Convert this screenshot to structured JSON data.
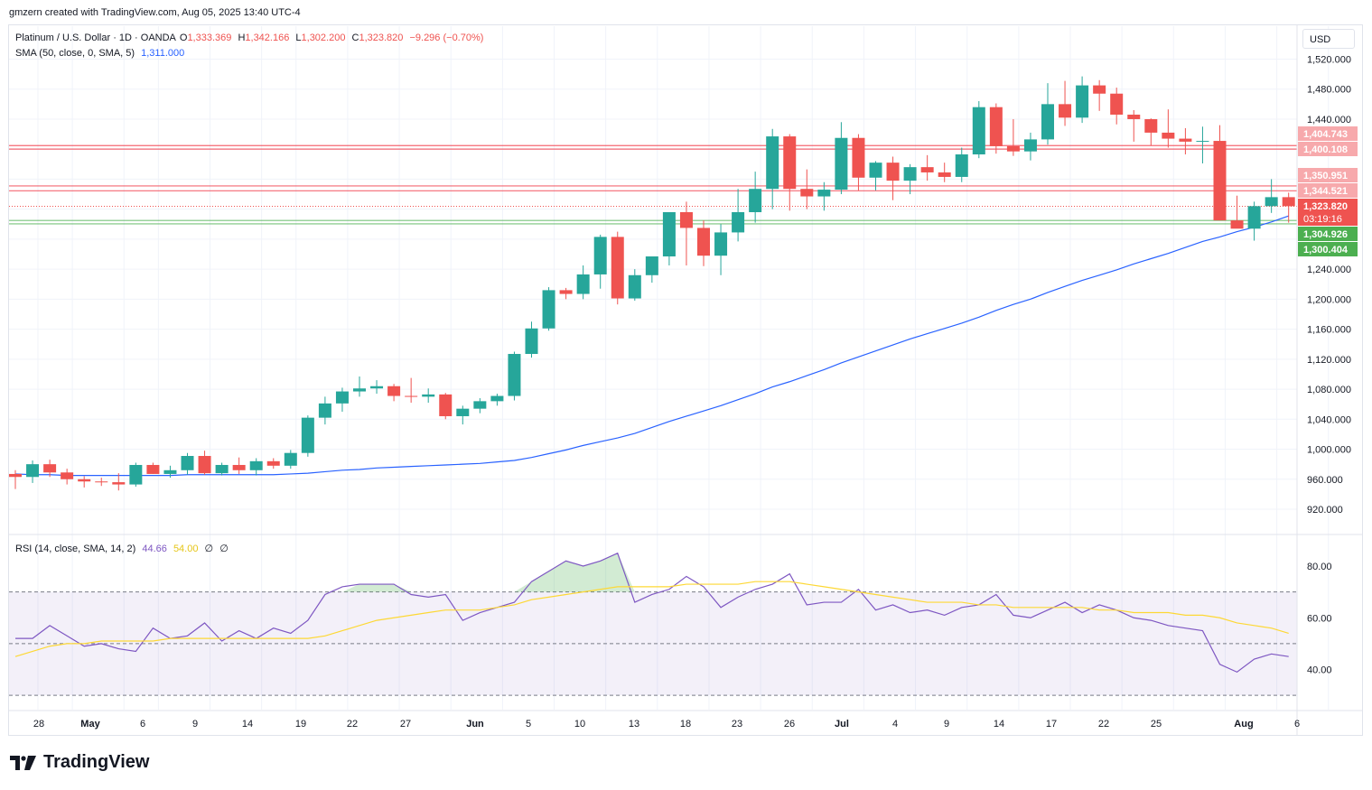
{
  "header": {
    "attribution": "gmzern created with TradingView.com, Aug 05, 2025 13:40 UTC-4"
  },
  "legend": {
    "symbol": "Platinum / U.S. Dollar · 1D · OANDA",
    "o_label": "O",
    "o_value": "1,333.369",
    "h_label": "H",
    "h_value": "1,342.166",
    "l_label": "L",
    "l_value": "1,302.200",
    "c_label": "C",
    "c_value": "1,323.820",
    "change": "−9.296 (−0.70%)",
    "sma_label": "SMA (50, close, 0, SMA, 5)",
    "sma_value": "1,311.000",
    "rsi_label": "RSI (14, close, SMA, 14, 2)",
    "rsi_value": "44.66",
    "rsi_ma_value": "54.00",
    "rsi_extra1": "∅",
    "rsi_extra2": "∅"
  },
  "currency": "USD",
  "footer": {
    "brand": "TradingView"
  },
  "colors": {
    "up": "#26a69a",
    "down": "#ef5350",
    "sma": "#2962ff",
    "rsi": "#7e57c2",
    "rsi_ma": "#fdd835",
    "res": "#f23645",
    "sup": "#4caf50"
  },
  "chart_data": [
    {
      "type": "candlestick",
      "title": "Platinum / U.S. Dollar · 1D · OANDA",
      "ylim": [
        880,
        1530
      ],
      "yticks": [
        "920.000",
        "960.000",
        "1,000.000",
        "1,040.000",
        "1,080.000",
        "1,120.000",
        "1,160.000",
        "1,200.000",
        "1,240.000",
        "1,440.000",
        "1,480.000",
        "1,520.000"
      ],
      "xticks": [
        "28",
        "May",
        "6",
        "9",
        "14",
        "19",
        "22",
        "27",
        "Jun",
        "5",
        "10",
        "13",
        "18",
        "23",
        "26",
        "Jul",
        "4",
        "9",
        "14",
        "17",
        "22",
        "25",
        "Aug",
        "6"
      ],
      "candles": [
        [
          967,
          972,
          947,
          963
        ],
        [
          963,
          985,
          955,
          980
        ],
        [
          980,
          986,
          963,
          969
        ],
        [
          969,
          974,
          953,
          960
        ],
        [
          960,
          964,
          949,
          957
        ],
        [
          957,
          962,
          951,
          956
        ],
        [
          956,
          968,
          945,
          953
        ],
        [
          953,
          982,
          950,
          979
        ],
        [
          979,
          982,
          967,
          967
        ],
        [
          967,
          978,
          962,
          972
        ],
        [
          972,
          995,
          966,
          991
        ],
        [
          991,
          998,
          966,
          968
        ],
        [
          968,
          982,
          965,
          979
        ],
        [
          979,
          989,
          967,
          972
        ],
        [
          972,
          988,
          965,
          984
        ],
        [
          984,
          988,
          974,
          978
        ],
        [
          978,
          999,
          974,
          995
        ],
        [
          995,
          1045,
          990,
          1042
        ],
        [
          1042,
          1070,
          1033,
          1061
        ],
        [
          1061,
          1082,
          1050,
          1077
        ],
        [
          1077,
          1097,
          1070,
          1081
        ],
        [
          1081,
          1092,
          1074,
          1084
        ],
        [
          1084,
          1087,
          1064,
          1071
        ],
        [
          1071,
          1095,
          1062,
          1070
        ],
        [
          1070,
          1081,
          1062,
          1073
        ],
        [
          1073,
          1075,
          1040,
          1044
        ],
        [
          1044,
          1058,
          1033,
          1054
        ],
        [
          1054,
          1068,
          1048,
          1064
        ],
        [
          1064,
          1074,
          1058,
          1071
        ],
        [
          1071,
          1130,
          1065,
          1127
        ],
        [
          1127,
          1170,
          1122,
          1161
        ],
        [
          1161,
          1216,
          1158,
          1212
        ],
        [
          1212,
          1215,
          1200,
          1207
        ],
        [
          1207,
          1245,
          1200,
          1233
        ],
        [
          1233,
          1286,
          1214,
          1283
        ],
        [
          1283,
          1290,
          1193,
          1201
        ],
        [
          1201,
          1240,
          1198,
          1232
        ],
        [
          1232,
          1255,
          1222,
          1257
        ],
        [
          1257,
          1315,
          1245,
          1316
        ],
        [
          1316,
          1330,
          1245,
          1295
        ],
        [
          1295,
          1305,
          1244,
          1258
        ],
        [
          1258,
          1300,
          1232,
          1289
        ],
        [
          1289,
          1347,
          1277,
          1316
        ],
        [
          1316,
          1370,
          1302,
          1347
        ],
        [
          1347,
          1427,
          1320,
          1417
        ],
        [
          1417,
          1420,
          1318,
          1347
        ],
        [
          1347,
          1373,
          1320,
          1337
        ],
        [
          1337,
          1356,
          1318,
          1346
        ],
        [
          1346,
          1436,
          1340,
          1415
        ],
        [
          1415,
          1420,
          1345,
          1362
        ],
        [
          1362,
          1384,
          1345,
          1382
        ],
        [
          1382,
          1390,
          1332,
          1358
        ],
        [
          1358,
          1380,
          1340,
          1376
        ],
        [
          1376,
          1392,
          1358,
          1369
        ],
        [
          1369,
          1382,
          1356,
          1363
        ],
        [
          1363,
          1402,
          1356,
          1393
        ],
        [
          1393,
          1464,
          1388,
          1456
        ],
        [
          1456,
          1461,
          1394,
          1404
        ],
        [
          1404,
          1440,
          1391,
          1397
        ],
        [
          1397,
          1422,
          1385,
          1413
        ],
        [
          1413,
          1488,
          1406,
          1460
        ],
        [
          1460,
          1491,
          1431,
          1442
        ],
        [
          1442,
          1497,
          1435,
          1485
        ],
        [
          1485,
          1492,
          1451,
          1474
        ],
        [
          1474,
          1482,
          1433,
          1446
        ],
        [
          1446,
          1452,
          1410,
          1440
        ],
        [
          1440,
          1441,
          1405,
          1422
        ],
        [
          1422,
          1453,
          1402,
          1414
        ],
        [
          1414,
          1428,
          1393,
          1410
        ],
        [
          1410,
          1430,
          1381,
          1411
        ],
        [
          1411,
          1432,
          1305,
          1305
        ],
        [
          1305,
          1338,
          1300,
          1294
        ],
        [
          1294,
          1330,
          1278,
          1324
        ],
        [
          1324,
          1360,
          1315,
          1336
        ],
        [
          1336,
          1342,
          1302,
          1324
        ]
      ],
      "sma": [
        967,
        966,
        966,
        965,
        965,
        965,
        965,
        965,
        965,
        965,
        966,
        966,
        966,
        966,
        966,
        966,
        967,
        968,
        970,
        972,
        973,
        975,
        976,
        977,
        978,
        979,
        980,
        981,
        983,
        985,
        989,
        994,
        999,
        1005,
        1010,
        1015,
        1021,
        1029,
        1037,
        1044,
        1051,
        1058,
        1066,
        1074,
        1083,
        1090,
        1098,
        1106,
        1115,
        1123,
        1131,
        1139,
        1147,
        1154,
        1161,
        1168,
        1176,
        1185,
        1193,
        1200,
        1209,
        1217,
        1225,
        1232,
        1239,
        1247,
        1254,
        1261,
        1269,
        1277,
        1283,
        1290,
        1296,
        1303,
        1311
      ],
      "levels": [
        {
          "label": "1,404.743",
          "value": 1404.743,
          "kind": "resistance"
        },
        {
          "label": "1,400.108",
          "value": 1400.108,
          "kind": "resistance"
        },
        {
          "label": "1,350.951",
          "value": 1350.951,
          "kind": "resistance"
        },
        {
          "label": "1,344.521",
          "value": 1344.521,
          "kind": "resistance"
        },
        {
          "label": "1,304.926",
          "value": 1304.926,
          "kind": "support"
        },
        {
          "label": "1,300.404",
          "value": 1300.404,
          "kind": "support"
        }
      ],
      "last_price": {
        "label": "1,323.820",
        "value": 1323.82,
        "countdown": "03:19:16"
      }
    },
    {
      "type": "line",
      "title": "RSI (14, close, SMA, 14, 2)",
      "ylim": [
        25,
        90
      ],
      "yticks": [
        "40.00",
        "60.00",
        "80.00"
      ],
      "bands": {
        "upper": 70,
        "middle": 50,
        "lower": 30
      },
      "series": [
        {
          "name": "RSI",
          "values": [
            52,
            52,
            57,
            53,
            49,
            50,
            48,
            47,
            56,
            52,
            53,
            58,
            51,
            55,
            52,
            56,
            54,
            59,
            69,
            72,
            73,
            73,
            73,
            69,
            68,
            69,
            59,
            62,
            64,
            66,
            74,
            78,
            82,
            80,
            82,
            85,
            66,
            69,
            71,
            76,
            72,
            64,
            68,
            71,
            73,
            77,
            65,
            66,
            66,
            71,
            63,
            65,
            62,
            63,
            61,
            64,
            65,
            69,
            61,
            60,
            63,
            66,
            62,
            65,
            63,
            60,
            59,
            57,
            56,
            55,
            42,
            39,
            44,
            46,
            45
          ]
        },
        {
          "name": "RSI MA",
          "values": [
            45,
            47,
            49,
            50,
            50,
            51,
            51,
            51,
            51,
            52,
            52,
            52,
            52,
            52,
            52,
            52,
            52,
            52,
            53,
            55,
            57,
            59,
            60,
            61,
            62,
            63,
            63,
            63,
            64,
            65,
            67,
            68,
            69,
            70,
            71,
            72,
            72,
            72,
            72,
            73,
            73,
            73,
            73,
            74,
            74,
            74,
            73,
            72,
            71,
            70,
            69,
            68,
            67,
            66,
            66,
            66,
            65,
            65,
            64,
            64,
            64,
            64,
            64,
            63,
            63,
            62,
            62,
            62,
            61,
            61,
            60,
            58,
            57,
            56,
            54
          ]
        }
      ]
    }
  ]
}
